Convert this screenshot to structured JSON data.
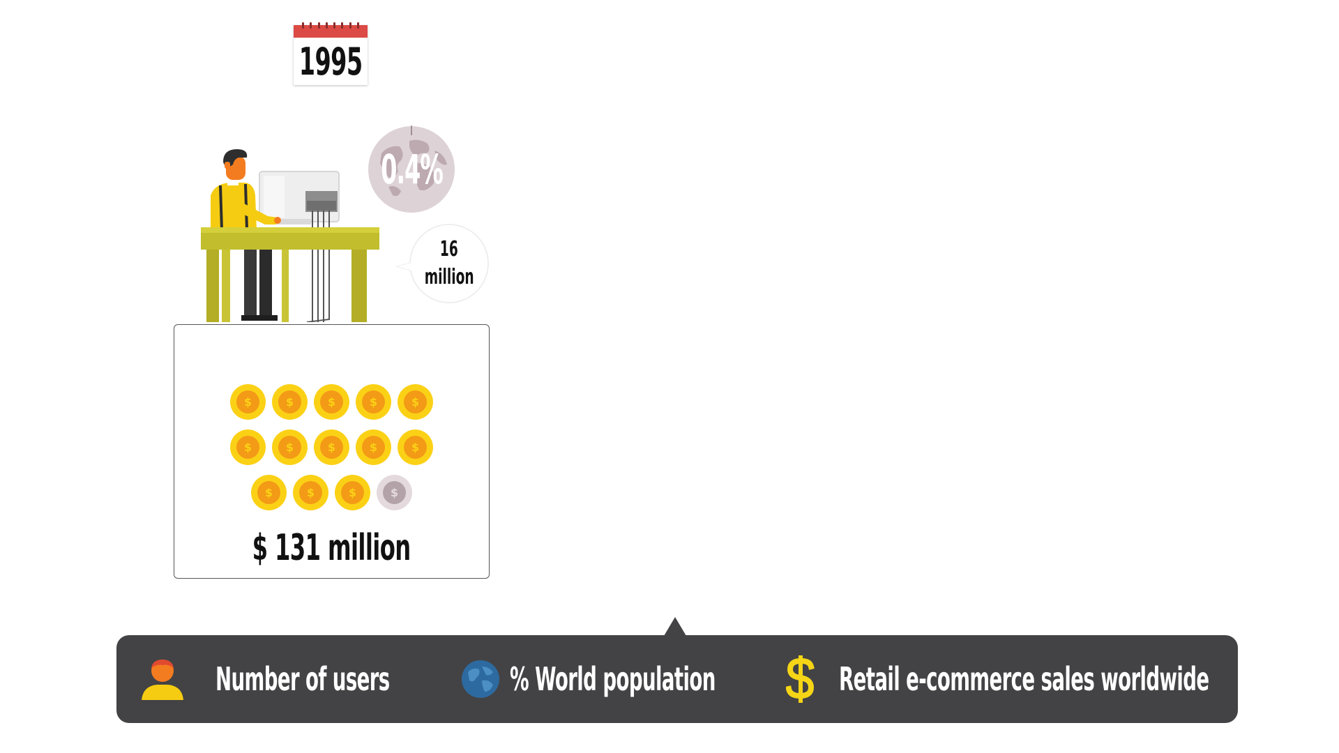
{
  "year": "1995",
  "world_population_percent": "0.4%",
  "users": {
    "value": "16",
    "unit": "million"
  },
  "sales": {
    "label": "$ 131 million",
    "coins_total": 14,
    "coins_filled": 13
  },
  "legend": {
    "items": [
      {
        "icon": "user-icon",
        "label": "Number of users"
      },
      {
        "icon": "globe-icon",
        "label": "% World population"
      },
      {
        "icon": "dollar-icon",
        "label": "Retail e-commerce sales worldwide"
      }
    ]
  },
  "colors": {
    "legend_bg": "#434345",
    "coin_gold": "#fbd116",
    "coin_orange": "#f39a16",
    "calendar_red": "#dc4a45",
    "person_yellow": "#f5cc12",
    "desk_olive": "#c1bd2d"
  }
}
